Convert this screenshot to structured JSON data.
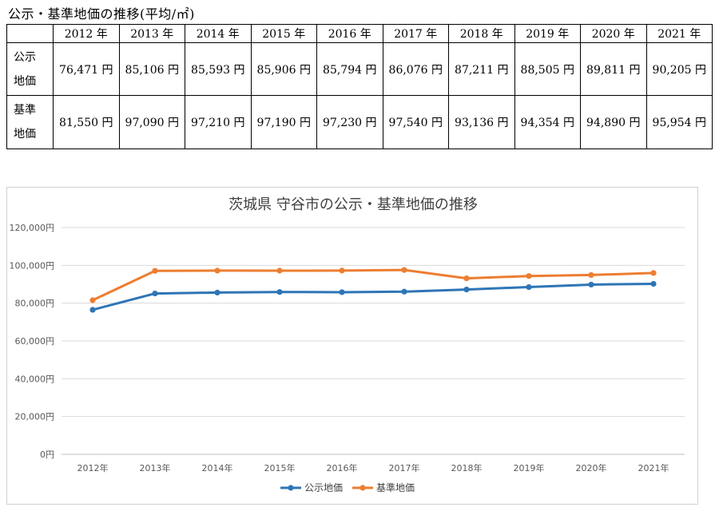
{
  "page_title": "公示・基準地価の推移(平均/㎡)",
  "table": {
    "corner": "",
    "years": [
      "2012 年",
      "2013 年",
      "2014 年",
      "2015 年",
      "2016 年",
      "2017 年",
      "2018 年",
      "2019 年",
      "2020 年",
      "2021 年"
    ],
    "rows": [
      {
        "label_line1": "公示",
        "label_line2": "地価",
        "cells": [
          "76,471 円",
          "85,106 円",
          "85,593 円",
          "85,906 円",
          "85,794 円",
          "86,076 円",
          "87,211 円",
          "88,505 円",
          "89,811 円",
          "90,205 円"
        ]
      },
      {
        "label_line1": "基準",
        "label_line2": "地価",
        "cells": [
          "81,550 円",
          "97,090 円",
          "97,210 円",
          "97,190 円",
          "97,230 円",
          "97,540 円",
          "93,136 円",
          "94,354 円",
          "94,890 円",
          "95,954 円"
        ]
      }
    ]
  },
  "chart_data": {
    "type": "line",
    "title": "茨城県 守谷市の公示・基準地価の推移",
    "categories": [
      "2012年",
      "2013年",
      "2014年",
      "2015年",
      "2016年",
      "2017年",
      "2018年",
      "2019年",
      "2020年",
      "2021年"
    ],
    "ylim": [
      0,
      120000
    ],
    "y_ticks": [
      0,
      20000,
      40000,
      60000,
      80000,
      100000,
      120000
    ],
    "y_tick_labels": [
      "0円",
      "20,000円",
      "40,000円",
      "60,000円",
      "80,000円",
      "100,000円",
      "120,000円"
    ],
    "grid": true,
    "legend_position": "bottom",
    "series": [
      {
        "name": "公示地価",
        "color": "#2E75B6",
        "values": [
          76471,
          85106,
          85593,
          85906,
          85794,
          86076,
          87211,
          88505,
          89811,
          90205
        ]
      },
      {
        "name": "基準地価",
        "color": "#ED7D31",
        "values": [
          81550,
          97090,
          97210,
          97190,
          97230,
          97540,
          93136,
          94354,
          94890,
          95954
        ]
      }
    ]
  }
}
